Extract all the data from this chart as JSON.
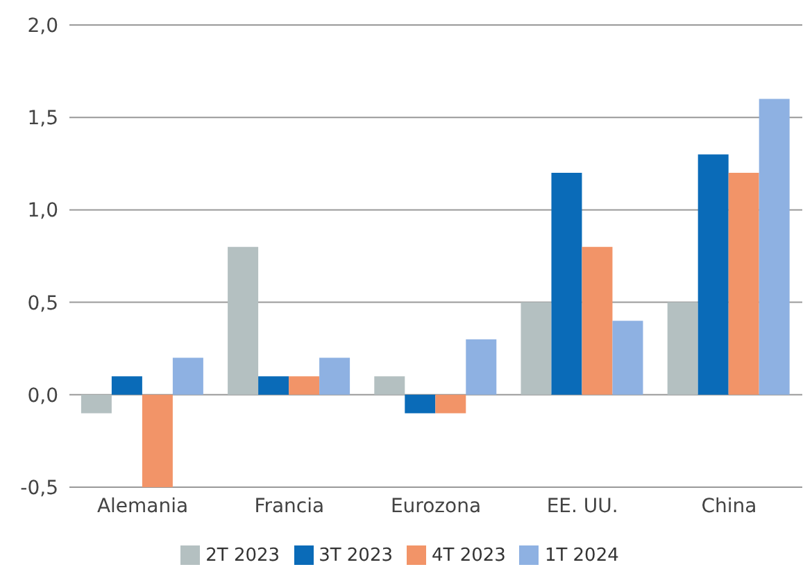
{
  "chart_data": {
    "type": "bar",
    "categories": [
      "Alemania",
      "Francia",
      "Eurozona",
      "EE. UU.",
      "China"
    ],
    "series": [
      {
        "name": "2T 2023",
        "color": "#b4c0c1",
        "values": [
          -0.1,
          0.8,
          0.1,
          0.5,
          0.5
        ]
      },
      {
        "name": "3T 2023",
        "color": "#0a6bb8",
        "values": [
          0.1,
          0.1,
          -0.1,
          1.2,
          1.3
        ]
      },
      {
        "name": "4T 2023",
        "color": "#f29468",
        "values": [
          -0.5,
          0.1,
          -0.1,
          0.8,
          1.2
        ]
      },
      {
        "name": "1T 2024",
        "color": "#8eb1e2",
        "values": [
          0.2,
          0.2,
          0.3,
          0.4,
          1.6
        ]
      }
    ],
    "ylim": [
      -0.5,
      2.0
    ],
    "yticks": [
      {
        "value": -0.5,
        "label": "-0,5"
      },
      {
        "value": 0,
        "label": "0,0"
      },
      {
        "value": 0.5,
        "label": "0,5"
      },
      {
        "value": 1,
        "label": "1,0"
      },
      {
        "value": 1.5,
        "label": "1,5"
      },
      {
        "value": 2,
        "label": "2,0"
      }
    ],
    "grid": "y",
    "legend": "bottom"
  }
}
